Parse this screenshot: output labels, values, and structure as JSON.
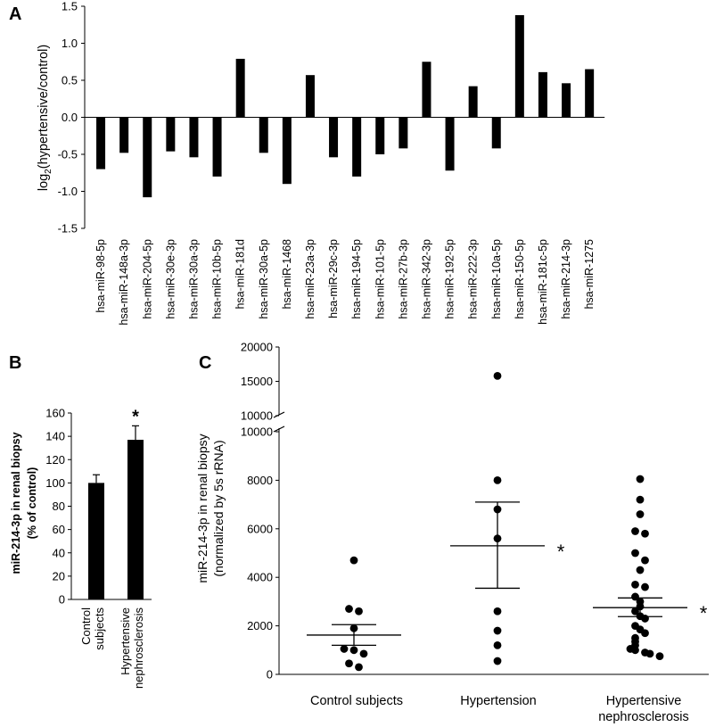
{
  "figure": {
    "panel_a": "A",
    "panel_b": "B",
    "panel_c": "C"
  },
  "chart_data": [
    {
      "panel": "A",
      "type": "bar",
      "ylabel_pre": "log",
      "ylabel_sub": "2",
      "ylabel_post": "(hypertensive/control)",
      "ylim": [
        -1.5,
        1.5
      ],
      "yticks": [
        "-1.5",
        "-1.0",
        "-0.5",
        "0.0",
        "0.5",
        "1.0",
        "1.5"
      ],
      "ytick_values": [
        -1.5,
        -1.0,
        -0.5,
        0.0,
        0.5,
        1.0,
        1.5
      ],
      "categories": [
        "hsa-miR-98-5p",
        "hsa-miR-148a-3p",
        "hsa-miR-204-5p",
        "hsa-miR-30e-3p",
        "hsa-miR-30a-3p",
        "hsa-miR-10b-5p",
        "hsa-miR-181d",
        "hsa-miR-30a-5p",
        "hsa-miR-1468",
        "hsa-miR-23a-3p",
        "hsa-miR-29c-3p",
        "hsa-miR-194-5p",
        "hsa-miR-101-5p",
        "hsa-miR-27b-3p",
        "hsa-miR-342-3p",
        "hsa-miR-192-5p",
        "hsa-miR-222-3p",
        "hsa-miR-10a-5p",
        "hsa-miR-150-5p",
        "hsa-miR-181c-5p",
        "hsa-miR-214-3p",
        "hsa-miR-1275"
      ],
      "values": [
        -0.7,
        -0.48,
        -1.08,
        -0.46,
        -0.54,
        -0.8,
        0.79,
        -0.48,
        -0.9,
        0.57,
        -0.54,
        -0.8,
        -0.5,
        -0.42,
        0.75,
        -0.72,
        0.42,
        -0.42,
        1.38,
        0.61,
        0.46,
        0.65
      ]
    },
    {
      "panel": "B",
      "type": "bar",
      "ylabel_line1": "miR-214-3p in renal biopsy",
      "ylabel_line2": "(% of control)",
      "ylim": [
        0,
        160
      ],
      "yticks": [
        "0",
        "20",
        "40",
        "60",
        "80",
        "100",
        "120",
        "140",
        "160"
      ],
      "ytick_values": [
        0,
        20,
        40,
        60,
        80,
        100,
        120,
        140,
        160
      ],
      "categories": [
        {
          "line1": "Control",
          "line2": "subjects"
        },
        {
          "line1": "Hypertensive",
          "line2": "nephrosclerosis"
        }
      ],
      "values": [
        100,
        137
      ],
      "errors": [
        7,
        12
      ],
      "significance": [
        "",
        "*"
      ]
    },
    {
      "panel": "C",
      "type": "scatter",
      "ylabel_line1": "miR-214-3p in renal biopsy",
      "ylabel_line2": "(normalized by 5s rRNA)",
      "ylim_lower": [
        0,
        10000
      ],
      "ylim_upper": [
        10000,
        20000
      ],
      "yticks_lower": [
        "0",
        "2000",
        "4000",
        "6000",
        "8000",
        "10000"
      ],
      "ytick_values_lower": [
        0,
        2000,
        4000,
        6000,
        8000,
        10000
      ],
      "yticks_upper": [
        "10000",
        "15000",
        "20000"
      ],
      "ytick_values_upper": [
        10000,
        15000,
        20000
      ],
      "groups": [
        {
          "label": "Control subjects",
          "points": [
            4700,
            2700,
            2600,
            1900,
            1050,
            1000,
            850,
            450,
            300
          ],
          "mean": 1620,
          "sem_low": 1200,
          "sem_high": 2050,
          "significance": ""
        },
        {
          "label": "Hypertension",
          "points": [
            15800,
            8000,
            6800,
            5600,
            2600,
            1800,
            1200,
            550
          ],
          "mean": 5300,
          "sem_low": 3550,
          "sem_high": 7100,
          "significance": "*"
        },
        {
          "label_line1": "Hypertensive",
          "label_line2": "nephrosclerosis",
          "points": [
            8050,
            7200,
            6600,
            5900,
            5800,
            5000,
            4700,
            4300,
            3700,
            3600,
            3200,
            3000,
            2800,
            2600,
            2400,
            2300,
            2000,
            1850,
            1700,
            1500,
            1350,
            1200,
            1050,
            1000,
            900,
            850,
            750
          ],
          "mean": 2750,
          "sem_low": 2380,
          "sem_high": 3150,
          "significance": "*"
        }
      ]
    }
  ]
}
